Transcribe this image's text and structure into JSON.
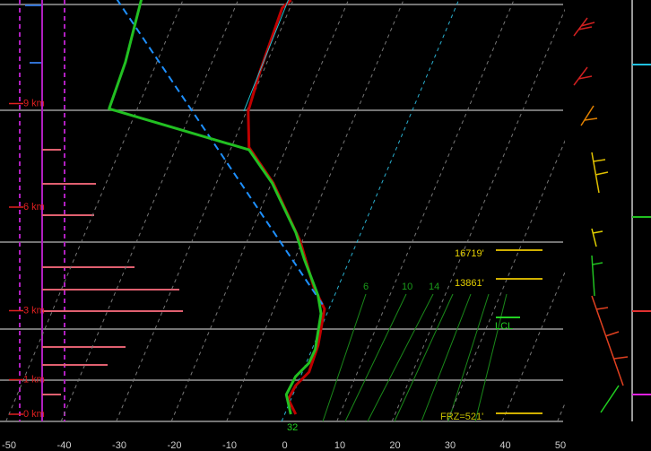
{
  "chart_data": {
    "type": "skewt",
    "xlim": [
      -50,
      50
    ],
    "xticks": [
      -50,
      -40,
      -30,
      -20,
      -10,
      0,
      10,
      20,
      30,
      40,
      50
    ],
    "ylim": [
      0,
      12
    ],
    "yticks": [
      {
        "value": 0,
        "label": "0 km"
      },
      {
        "value": 1,
        "label": "1 km"
      },
      {
        "value": 3,
        "label": "3 km"
      },
      {
        "value": 6,
        "label": "6 km"
      },
      {
        "value": 9,
        "label": "9 km"
      }
    ],
    "series": [
      {
        "color": "#c00000",
        "linestyle": "solid",
        "width": 3,
        "x": [
          2.0,
          -0.5,
          -0.2,
          1.2,
          0.8,
          -0.8,
          -4.5,
          -10.3,
          -19.7,
          -26.8,
          -29.7,
          -30.6,
          -31.4,
          -30.4
        ],
        "y": [
          0,
          0.44,
          0.83,
          1.22,
          2.0,
          3.05,
          3.7,
          5.0,
          6.7,
          7.73,
          8.78,
          9.95,
          11.77,
          12.0
        ]
      },
      {
        "color": "#1ec8d8",
        "linestyle": "solid",
        "width": 1,
        "x": [
          -30.5,
          -30.9
        ],
        "y": [
          8.78,
          12.0
        ]
      },
      {
        "color": "#1e90ff",
        "linestyle": "dashed",
        "width": 2,
        "x": [
          -1.5,
          -62.1
        ],
        "y": [
          3.18,
          12.03
        ]
      },
      {
        "color": "#22c022",
        "linestyle": "solid",
        "width": 3,
        "x": [
          1.1,
          -1.2,
          -0.9,
          0.5,
          0.6,
          -1.1,
          -3.0,
          -8.2,
          -11.8,
          -19.9,
          -26.6,
          -55.1,
          -55.7,
          -56.8,
          -57.6
        ],
        "y": [
          0,
          0.57,
          1.09,
          1.48,
          1.88,
          2.92,
          3.44,
          4.48,
          5.26,
          6.7,
          7.66,
          8.85,
          10.2,
          11.25,
          12.03
        ]
      }
    ],
    "annotations": {
      "el_height": "16719'",
      "lfc_height": "13861'",
      "lcl": "LCL",
      "freezing": "FRZ=521'",
      "surface_temp": "32",
      "mixing_ratio": [
        "6",
        "10",
        "14"
      ]
    }
  }
}
